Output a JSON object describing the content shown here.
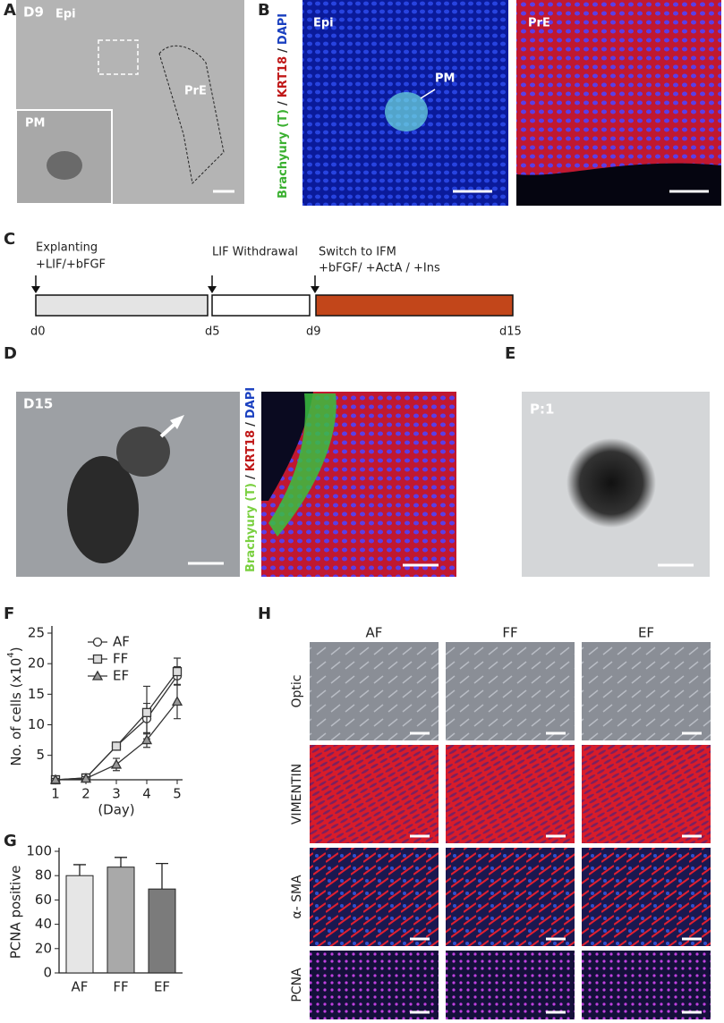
{
  "panels": {
    "A": {
      "label": "A",
      "stage": "D9",
      "region": "Epi",
      "outline": "PrE",
      "inset": "PM"
    },
    "B": {
      "label": "B",
      "stain": [
        "Brachyury (T)",
        "/",
        "KRT18",
        "/",
        "DAPI"
      ],
      "left": "Epi",
      "arrow": "PM",
      "right": "PrE"
    },
    "C": {
      "label": "C",
      "steps": [
        {
          "title": "Explanting",
          "detail": "+LIF/+bFGF",
          "day": "d0"
        },
        {
          "title": "LIF Withdrawal",
          "day": "d5"
        },
        {
          "title": "Switch to IFM",
          "detail": "+bFGF/ +ActA / +Ins",
          "day": "d9"
        }
      ],
      "end_day": "d15"
    },
    "D": {
      "label": "D",
      "stage": "D15",
      "stain": [
        "Brachyury (T)",
        "/",
        "KRT18",
        "/",
        "DAPI"
      ]
    },
    "E": {
      "label": "E",
      "passage": "P:1"
    },
    "F": {
      "label": "F"
    },
    "G": {
      "label": "G"
    },
    "H": {
      "label": "H",
      "columns": [
        "AF",
        "FF",
        "EF"
      ],
      "rows": [
        "Optic",
        "VIMENTIN",
        "α- SMA",
        "PCNA"
      ]
    }
  },
  "chart_data": [
    {
      "type": "line",
      "ylabel": [
        "No. of cells (x10",
        "4",
        ")"
      ],
      "xlabel": "(Day)",
      "x": [
        1,
        2,
        3,
        4,
        5
      ],
      "xlim": [
        1,
        5
      ],
      "xticks": [
        1,
        2,
        3,
        4,
        5
      ],
      "ylim": [
        1,
        25
      ],
      "yticks": [
        5,
        10,
        15,
        20,
        25
      ],
      "series": [
        {
          "name": "AF",
          "marker": "circle",
          "color": "#333333",
          "values": [
            1,
            1.3,
            6.5,
            11,
            18
          ],
          "errors": [
            0.2,
            0.3,
            0.5,
            2.5,
            1.5
          ]
        },
        {
          "name": "FF",
          "marker": "square",
          "color": "#333333",
          "values": [
            1,
            1.3,
            6.5,
            12,
            18.7
          ],
          "errors": [
            0.2,
            0.3,
            0.5,
            4.3,
            2.2
          ]
        },
        {
          "name": "EF",
          "marker": "triangle",
          "color": "#333333",
          "values": [
            1,
            1.2,
            3.5,
            7.5,
            13.8
          ],
          "errors": [
            0.2,
            0.3,
            1,
            1.2,
            2.8
          ]
        }
      ]
    },
    {
      "type": "bar",
      "ylabel": "PCNA positive",
      "categories": [
        "AF",
        "FF",
        "EF"
      ],
      "values": [
        80,
        87,
        69
      ],
      "errors": [
        9,
        8,
        21
      ],
      "colors": [
        "#e6e6e6",
        "#a9a9a9",
        "#7b7b7b"
      ],
      "ylim": [
        0,
        100
      ],
      "yticks": [
        0,
        20,
        40,
        60,
        80,
        100
      ]
    }
  ]
}
